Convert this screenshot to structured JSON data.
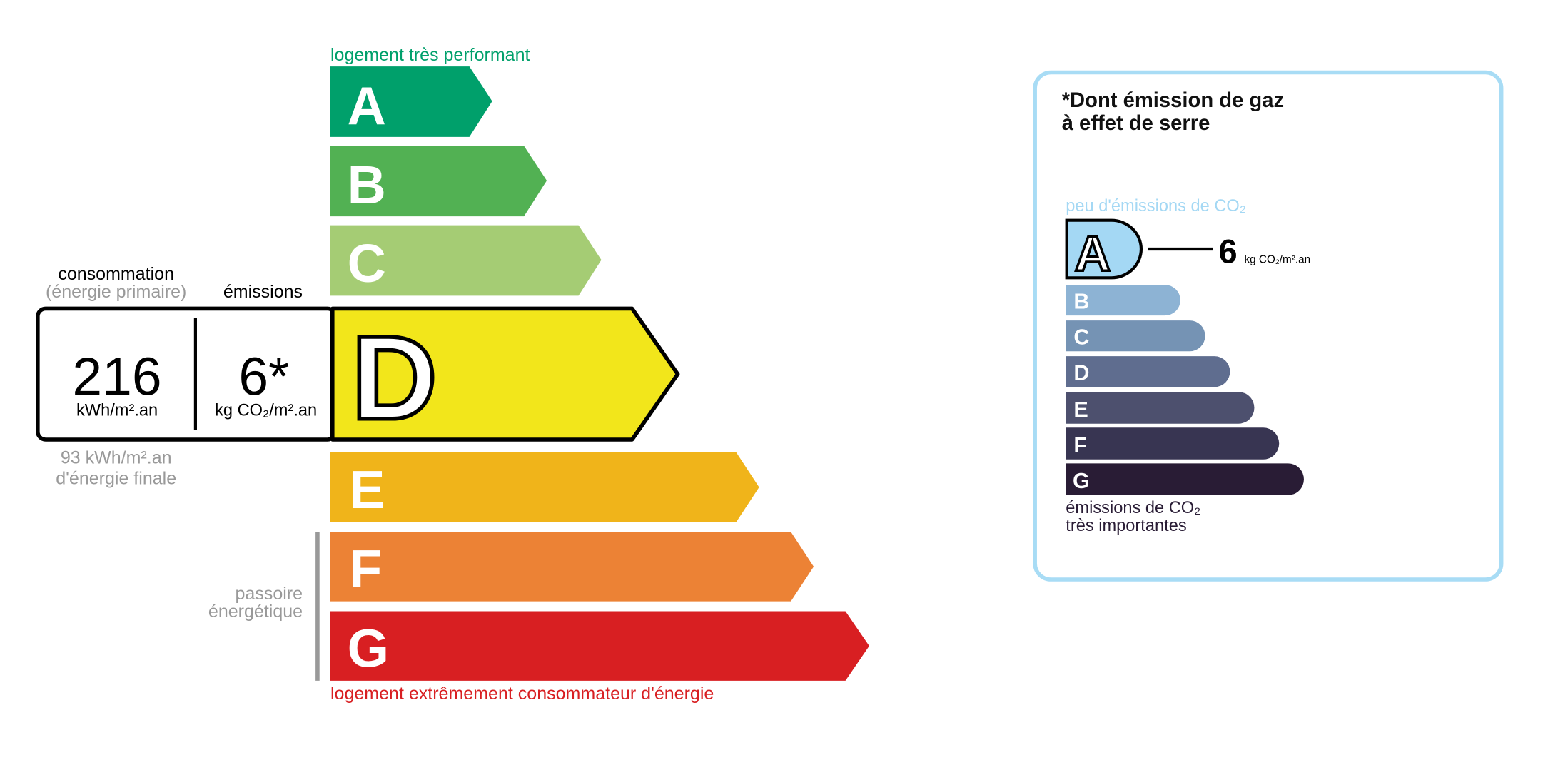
{
  "energy_label": {
    "top_caption": "logement très performant",
    "bottom_caption": "logement extrêmement consommateur d'énergie",
    "classes": [
      "A",
      "B",
      "C",
      "D",
      "E",
      "F",
      "G"
    ],
    "current_class": "D",
    "colors": {
      "A": "#00a06b",
      "B": "#52b153",
      "C": "#a5cc74",
      "D": "#f2e61b",
      "E": "#f0b41a",
      "F": "#ec8235",
      "G": "#d81f22"
    },
    "passoire": {
      "line1": "passoire",
      "line2": "énergétique"
    },
    "consumption": {
      "header1": "consommation",
      "header2": "(énergie primaire)",
      "value": "216",
      "unit": "kWh/m².an",
      "final_value": "93 kWh/m².an",
      "final_label": "d'énergie finale"
    },
    "emissions": {
      "header": "émissions",
      "value": "6*",
      "unit": "kg CO₂/m².an"
    }
  },
  "ghg_panel": {
    "title_line1": "*Dont émission de gaz",
    "title_line2": "à effet de serre",
    "top_caption": "peu d'émissions de CO₂",
    "bottom_caption_line1": "émissions de CO₂",
    "bottom_caption_line2": "très importantes",
    "current_class": "A",
    "value": "6",
    "unit": "kg CO₂/m².an",
    "classes": [
      "A",
      "B",
      "C",
      "D",
      "E",
      "F",
      "G"
    ],
    "colors": {
      "A": "#a4d8f4",
      "B": "#8db3d4",
      "C": "#7593b4",
      "D": "#5f6d8f",
      "E": "#4d506e",
      "F": "#383552",
      "G": "#291c35",
      "border": "#a8dcf5"
    }
  }
}
